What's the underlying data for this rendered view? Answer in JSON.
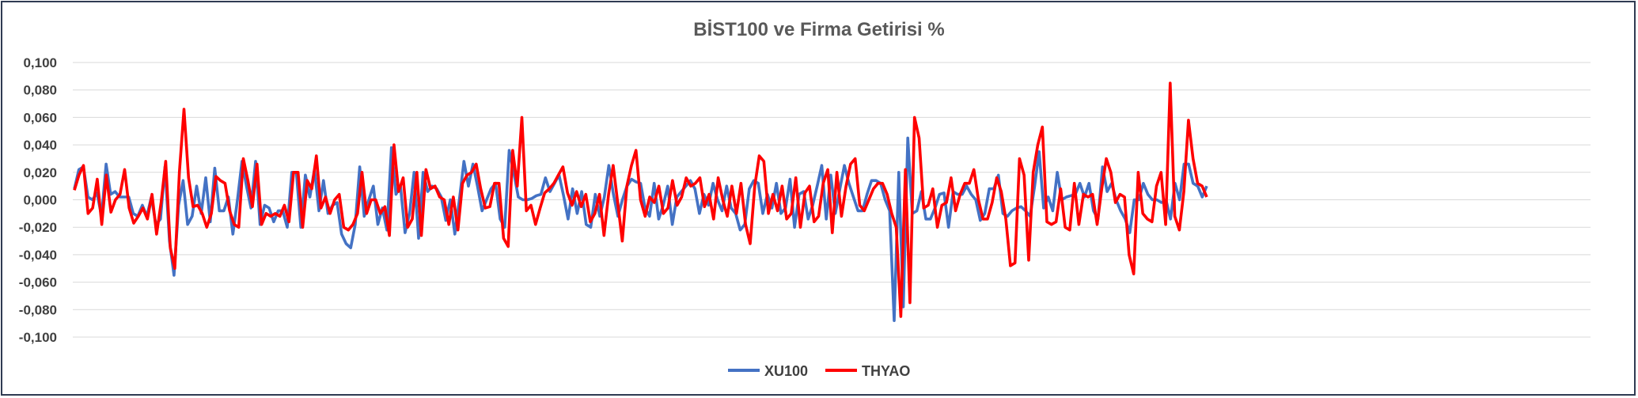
{
  "chart_data": {
    "type": "line",
    "title": "BİST100 ve Firma Getirisi %",
    "xlabel": "",
    "ylabel": "",
    "ylim": [
      -0.1,
      0.1
    ],
    "yticks": [
      "0,100",
      "0,080",
      "0,060",
      "0,040",
      "0,020",
      "0,000",
      "-0,020",
      "-0,040",
      "-0,060",
      "-0,080",
      "-0,100"
    ],
    "grid": true,
    "legend": "bottom",
    "n_points": 250,
    "series": [
      {
        "name": "XU100",
        "color": "#4472c4",
        "values": [
          0.008,
          0.022,
          0.024,
          0.002,
          0.0,
          0.005,
          -0.012,
          0.026,
          0.004,
          0.006,
          0.002,
          0.002,
          0.002,
          -0.01,
          -0.012,
          -0.004,
          -0.012,
          0.002,
          -0.018,
          -0.014,
          0.024,
          -0.03,
          -0.055,
          -0.004,
          0.014,
          -0.018,
          -0.012,
          0.01,
          -0.01,
          0.016,
          -0.016,
          0.023,
          -0.008,
          -0.008,
          0.002,
          -0.025,
          0.0,
          0.028,
          0.01,
          -0.006,
          0.028,
          -0.018,
          -0.004,
          -0.006,
          -0.016,
          -0.008,
          -0.008,
          -0.02,
          0.02,
          0.02,
          -0.02,
          0.018,
          0.002,
          0.022,
          -0.008,
          0.014,
          -0.01,
          -0.004,
          -0.002,
          -0.025,
          -0.032,
          -0.035,
          -0.018,
          0.024,
          -0.012,
          0.0,
          0.01,
          -0.018,
          -0.006,
          -0.022,
          0.038,
          0.004,
          0.01,
          -0.024,
          -0.01,
          0.02,
          -0.028,
          0.02,
          0.006,
          0.01,
          0.008,
          0.002,
          -0.015,
          0.0,
          -0.025,
          0.0,
          0.028,
          0.01,
          0.026,
          0.01,
          -0.008,
          0.0,
          0.008,
          0.012,
          -0.014,
          -0.02,
          0.036,
          0.02,
          0.002,
          0.0,
          0.0,
          0.001,
          0.003,
          0.004,
          0.016,
          0.006,
          0.012,
          0.018,
          0.003,
          -0.014,
          0.008,
          -0.01,
          0.006,
          -0.018,
          -0.02,
          0.004,
          -0.012,
          0.002,
          0.025,
          0.004,
          -0.012,
          0.0,
          0.01,
          0.015,
          0.013,
          0.012,
          -0.006,
          -0.012,
          0.012,
          -0.014,
          -0.004,
          0.01,
          -0.018,
          0.002,
          0.006,
          0.01,
          0.014,
          0.008,
          -0.01,
          0.004,
          -0.004,
          0.012,
          0.0,
          -0.008,
          0.01,
          -0.006,
          -0.01,
          -0.022,
          -0.018,
          0.008,
          0.014,
          0.012,
          -0.01,
          0.004,
          -0.006,
          0.012,
          -0.01,
          -0.006,
          0.015,
          -0.02,
          0.004,
          0.006,
          -0.014,
          -0.004,
          0.01,
          0.025,
          -0.014,
          0.018,
          -0.01,
          0.008,
          0.025,
          0.012,
          0.002,
          -0.008,
          -0.008,
          0.004,
          0.014,
          0.014,
          0.012,
          0.0,
          -0.008,
          -0.088,
          0.02,
          -0.078,
          0.045,
          -0.01,
          -0.008,
          0.006,
          -0.014,
          -0.014,
          -0.006,
          0.004,
          0.005,
          -0.02,
          0.006,
          0.004,
          0.004,
          0.01,
          0.004,
          0.0,
          -0.015,
          -0.01,
          0.008,
          0.008,
          0.018,
          -0.01,
          -0.012,
          -0.008,
          -0.006,
          -0.005,
          -0.008,
          -0.012,
          0.01,
          0.035,
          -0.006,
          0.002,
          -0.008,
          0.02,
          0.0,
          0.002,
          0.003,
          0.004,
          0.012,
          0.002,
          0.012,
          -0.008,
          -0.014,
          0.024,
          0.006,
          0.012,
          0.0,
          -0.008,
          -0.014,
          -0.024,
          0.0,
          0.0,
          0.012,
          0.004,
          0.0,
          0.0,
          -0.002,
          0.0,
          -0.014,
          0.012,
          0.0,
          0.026,
          0.026,
          0.012,
          0.01,
          0.002,
          0.01
        ],
        "values_note": ""
      },
      {
        "name": "THYAO",
        "color": "#ff0000",
        "values": [
          0.007,
          0.018,
          0.025,
          -0.01,
          -0.006,
          0.015,
          -0.018,
          0.018,
          -0.009,
          0.0,
          0.004,
          0.022,
          -0.006,
          -0.017,
          -0.012,
          -0.006,
          -0.014,
          0.004,
          -0.025,
          -0.002,
          0.028,
          -0.035,
          -0.05,
          0.02,
          0.066,
          0.016,
          -0.005,
          -0.004,
          -0.01,
          -0.02,
          -0.01,
          0.017,
          0.014,
          0.012,
          -0.008,
          -0.018,
          -0.02,
          0.03,
          0.014,
          -0.005,
          0.026,
          -0.018,
          -0.01,
          -0.012,
          -0.01,
          -0.012,
          -0.004,
          -0.016,
          0.02,
          0.02,
          -0.02,
          0.014,
          0.008,
          0.032,
          -0.006,
          0.002,
          -0.01,
          0.0,
          0.004,
          -0.02,
          -0.022,
          -0.018,
          -0.01,
          0.02,
          -0.01,
          0.0,
          0.0,
          -0.01,
          -0.005,
          -0.026,
          0.04,
          0.006,
          0.016,
          -0.02,
          -0.014,
          0.02,
          -0.026,
          0.022,
          0.008,
          0.01,
          0.002,
          0.0,
          -0.018,
          0.002,
          -0.022,
          0.012,
          0.018,
          0.02,
          0.026,
          0.008,
          -0.006,
          -0.005,
          0.012,
          0.012,
          -0.028,
          -0.034,
          0.036,
          0.01,
          0.06,
          -0.008,
          -0.004,
          -0.018,
          -0.006,
          0.005,
          0.008,
          0.012,
          0.018,
          0.024,
          0.005,
          -0.004,
          0.006,
          -0.005,
          0.004,
          -0.016,
          -0.01,
          0.004,
          -0.026,
          0.004,
          0.025,
          -0.002,
          -0.03,
          0.01,
          0.025,
          0.036,
          0.0,
          -0.012,
          0.002,
          -0.002,
          0.01,
          -0.01,
          -0.006,
          0.014,
          -0.004,
          0.002,
          0.016,
          0.01,
          0.012,
          0.016,
          -0.005,
          0.004,
          -0.014,
          0.016,
          0.0,
          -0.012,
          0.01,
          -0.01,
          0.012,
          -0.018,
          -0.032,
          0.01,
          0.032,
          0.028,
          -0.01,
          0.004,
          -0.008,
          0.01,
          -0.014,
          -0.01,
          0.016,
          -0.02,
          0.005,
          0.01,
          -0.016,
          -0.012,
          0.012,
          0.022,
          -0.024,
          0.02,
          -0.012,
          0.01,
          0.026,
          0.03,
          -0.004,
          -0.008,
          0.0,
          0.008,
          0.012,
          0.012,
          0.004,
          -0.01,
          -0.02,
          -0.085,
          0.022,
          -0.075,
          0.06,
          0.045,
          -0.006,
          -0.004,
          0.008,
          -0.02,
          -0.004,
          -0.002,
          0.016,
          -0.008,
          0.004,
          0.012,
          0.012,
          0.022,
          0.0,
          -0.014,
          -0.014,
          -0.002,
          0.016,
          0.006,
          -0.014,
          -0.048,
          -0.046,
          0.03,
          0.018,
          -0.044,
          0.02,
          0.04,
          0.053,
          -0.016,
          -0.018,
          -0.016,
          0.008,
          -0.02,
          -0.022,
          0.012,
          -0.018,
          0.004,
          0.002,
          0.004,
          -0.018,
          0.008,
          0.03,
          0.02,
          -0.002,
          0.004,
          0.002,
          -0.04,
          -0.054,
          0.02,
          -0.01,
          -0.014,
          -0.016,
          0.01,
          0.02,
          -0.018,
          0.085,
          -0.012,
          -0.022,
          0.006,
          0.058,
          0.03,
          0.012,
          0.01,
          0.002
        ]
      }
    ]
  }
}
